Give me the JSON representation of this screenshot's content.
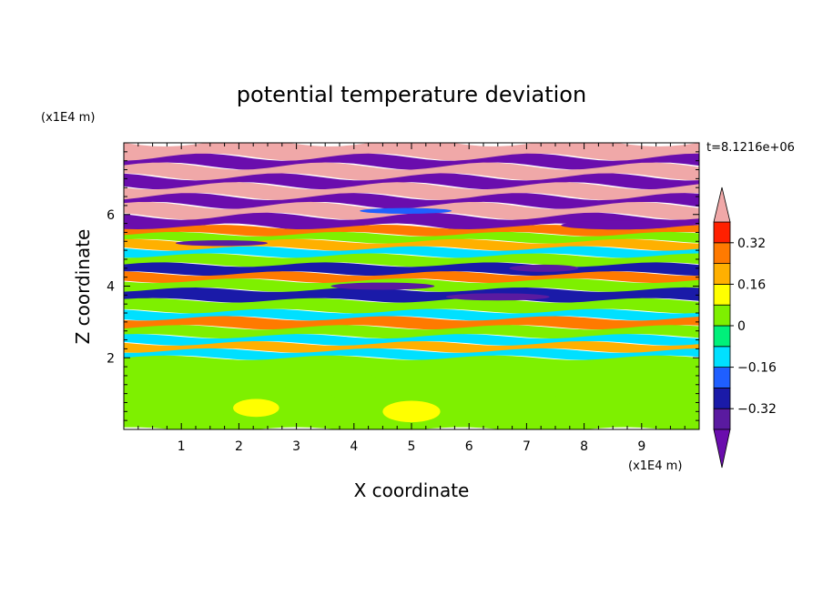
{
  "chart_data": {
    "type": "heatmap",
    "title": "potential temperature deviation",
    "xlabel": "X coordinate",
    "ylabel": "Z coordinate",
    "x_unit": "(x1E4 m)",
    "y_unit": "(x1E4 m)",
    "time_label": "t=8.1216e+06",
    "xlim": [
      0,
      10
    ],
    "ylim": [
      0,
      8
    ],
    "x_ticks": [
      "1",
      "2",
      "3",
      "4",
      "5",
      "6",
      "7",
      "8",
      "9"
    ],
    "y_ticks": [
      "2",
      "4",
      "6"
    ],
    "colorbar": {
      "levels": [
        -0.48,
        -0.4,
        -0.32,
        -0.24,
        -0.16,
        -0.08,
        0,
        0.08,
        0.16,
        0.24,
        0.32,
        0.4,
        0.48
      ],
      "tick_labels": [
        "0.32",
        "0.16",
        "0",
        "−0.16",
        "−0.32"
      ],
      "tick_values": [
        0.32,
        0.16,
        0,
        -0.16,
        -0.32
      ],
      "colors_low_to_high": [
        "#6a0dad",
        "#5a1aa0",
        "#1a1aa8",
        "#1f5fff",
        "#00e0ff",
        "#00f07a",
        "#7ef000",
        "#ffff00",
        "#ffb000",
        "#ff7a00",
        "#ff2000",
        "#f0a8a8"
      ],
      "extend": "both"
    },
    "bands": [
      {
        "z_top": 8.0,
        "z_bot": 7.6,
        "level": 0.45
      },
      {
        "z_top": 7.6,
        "z_bot": 7.35,
        "level": -0.45
      },
      {
        "z_top": 7.35,
        "z_bot": 7.05,
        "level": 0.45
      },
      {
        "z_top": 7.05,
        "z_bot": 6.8,
        "level": -0.45
      },
      {
        "z_top": 6.8,
        "z_bot": 6.5,
        "level": 0.45
      },
      {
        "z_top": 6.5,
        "z_bot": 6.25,
        "level": -0.45
      },
      {
        "z_top": 6.25,
        "z_bot": 5.95,
        "level": 0.45
      },
      {
        "z_top": 5.95,
        "z_bot": 5.65,
        "level": -0.45
      },
      {
        "z_top": 5.65,
        "z_bot": 5.45,
        "level": 0.3
      },
      {
        "z_top": 5.45,
        "z_bot": 5.25,
        "level": 0.02
      },
      {
        "z_top": 5.25,
        "z_bot": 5.05,
        "level": 0.18
      },
      {
        "z_top": 5.05,
        "z_bot": 4.85,
        "level": -0.1
      },
      {
        "z_top": 4.85,
        "z_bot": 4.6,
        "level": 0.04
      },
      {
        "z_top": 4.6,
        "z_bot": 4.35,
        "level": -0.3
      },
      {
        "z_top": 4.35,
        "z_bot": 4.15,
        "level": 0.25
      },
      {
        "z_top": 4.15,
        "z_bot": 3.9,
        "level": 0.02
      },
      {
        "z_top": 3.9,
        "z_bot": 3.6,
        "level": -0.28
      },
      {
        "z_top": 3.6,
        "z_bot": 3.3,
        "level": 0.05
      },
      {
        "z_top": 3.3,
        "z_bot": 3.1,
        "level": -0.12
      },
      {
        "z_top": 3.1,
        "z_bot": 2.85,
        "level": 0.3
      },
      {
        "z_top": 2.85,
        "z_bot": 2.6,
        "level": 0.02
      },
      {
        "z_top": 2.6,
        "z_bot": 2.4,
        "level": -0.15
      },
      {
        "z_top": 2.4,
        "z_bot": 2.2,
        "level": 0.2
      },
      {
        "z_top": 2.2,
        "z_bot": 2.0,
        "level": -0.12
      },
      {
        "z_top": 2.0,
        "z_bot": 0.0,
        "level": 0.05
      }
    ],
    "blobs": [
      {
        "x": 1.2,
        "z": 0.9,
        "rx": 0.9,
        "rz": 0.6,
        "level": 0.0
      },
      {
        "x": 3.2,
        "z": 0.8,
        "rx": 0.6,
        "rz": 0.5,
        "level": 0.0
      },
      {
        "x": 4.0,
        "z": 1.2,
        "rx": 0.5,
        "rz": 0.4,
        "level": 0.0
      },
      {
        "x": 6.2,
        "z": 0.8,
        "rx": 0.5,
        "rz": 0.45,
        "level": 0.0
      },
      {
        "x": 8.2,
        "z": 1.0,
        "rx": 0.7,
        "rz": 0.5,
        "level": 0.0
      },
      {
        "x": 2.3,
        "z": 0.6,
        "rx": 0.4,
        "rz": 0.25,
        "level": 0.1
      },
      {
        "x": 5.0,
        "z": 0.5,
        "rx": 0.5,
        "rz": 0.3,
        "level": 0.1
      },
      {
        "x": 4.5,
        "z": 4.0,
        "rx": 0.9,
        "rz": 0.1,
        "level": -0.4
      },
      {
        "x": 6.5,
        "z": 3.7,
        "rx": 0.9,
        "rz": 0.1,
        "level": -0.35
      },
      {
        "x": 1.7,
        "z": 5.2,
        "rx": 0.8,
        "rz": 0.08,
        "level": -0.4
      },
      {
        "x": 7.3,
        "z": 4.5,
        "rx": 0.6,
        "rz": 0.1,
        "level": -0.4
      },
      {
        "x": 8.6,
        "z": 5.7,
        "rx": 1.0,
        "rz": 0.12,
        "level": -0.45
      },
      {
        "x": 4.9,
        "z": 6.1,
        "rx": 0.8,
        "rz": 0.08,
        "level": -0.2
      }
    ]
  }
}
